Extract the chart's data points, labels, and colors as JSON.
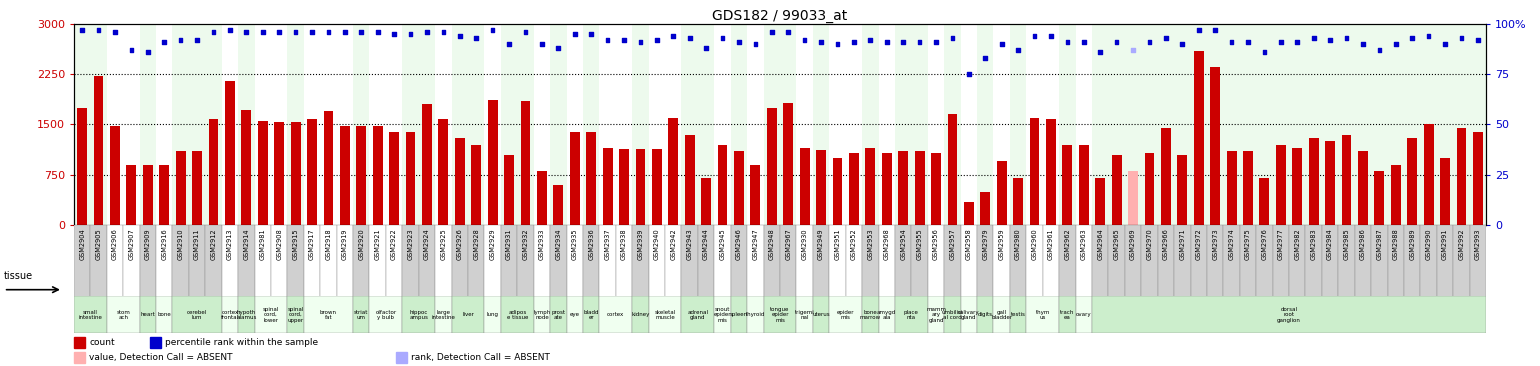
{
  "title": "GDS182 / 99033_at",
  "samples": [
    "GSM2904",
    "GSM2905",
    "GSM2906",
    "GSM2907",
    "GSM2909",
    "GSM2916",
    "GSM2910",
    "GSM2911",
    "GSM2912",
    "GSM2913",
    "GSM2914",
    "GSM2981",
    "GSM2908",
    "GSM2915",
    "GSM2917",
    "GSM2918",
    "GSM2919",
    "GSM2920",
    "GSM2921",
    "GSM2922",
    "GSM2923",
    "GSM2924",
    "GSM2925",
    "GSM2926",
    "GSM2928",
    "GSM2929",
    "GSM2931",
    "GSM2932",
    "GSM2933",
    "GSM2934",
    "GSM2935",
    "GSM2936",
    "GSM2937",
    "GSM2938",
    "GSM2939",
    "GSM2940",
    "GSM2942",
    "GSM2943",
    "GSM2944",
    "GSM2945",
    "GSM2946",
    "GSM2947",
    "GSM2948",
    "GSM2967",
    "GSM2930",
    "GSM2949",
    "GSM2951",
    "GSM2952",
    "GSM2953",
    "GSM2968",
    "GSM2954",
    "GSM2955",
    "GSM2956",
    "GSM2957",
    "GSM2958",
    "GSM2979",
    "GSM2959",
    "GSM2980",
    "GSM2960",
    "GSM2961",
    "GSM2962",
    "GSM2963",
    "GSM2964",
    "GSM2965",
    "GSM2969",
    "GSM2970",
    "GSM2966",
    "GSM2971",
    "GSM2972",
    "GSM2973",
    "GSM2974",
    "GSM2975",
    "GSM2976",
    "GSM2977",
    "GSM2982",
    "GSM2983",
    "GSM2984",
    "GSM2985",
    "GSM2986",
    "GSM2987",
    "GSM2988",
    "GSM2989",
    "GSM2990",
    "GSM2991",
    "GSM2992",
    "GSM2993"
  ],
  "counts": [
    1750,
    2220,
    1480,
    900,
    900,
    900,
    1100,
    1100,
    1580,
    2150,
    1720,
    1550,
    1530,
    1530,
    1580,
    1700,
    1480,
    1470,
    1480,
    1380,
    1380,
    1800,
    1580,
    1300,
    1200,
    1870,
    1050,
    1850,
    800,
    600,
    1380,
    1380,
    1150,
    1130,
    1130,
    1130,
    1600,
    1350,
    700,
    1200,
    1100,
    900,
    1750,
    1820,
    1150,
    1120,
    1000,
    1080,
    1150,
    1080,
    1100,
    1100,
    1080,
    1650,
    350,
    500,
    950,
    700,
    1600,
    1580,
    1200,
    1200,
    700,
    1050,
    800,
    1080,
    1450,
    1050,
    2600,
    2350,
    1100,
    1100,
    700,
    1200,
    1150,
    1300,
    1250,
    1350,
    1100,
    800,
    900,
    1300,
    1500,
    1000,
    1450,
    1380
  ],
  "percentile_ranks": [
    97,
    97,
    96,
    87,
    86,
    91,
    92,
    92,
    96,
    97,
    96,
    96,
    96,
    96,
    96,
    96,
    96,
    96,
    96,
    95,
    95,
    96,
    96,
    94,
    93,
    97,
    90,
    96,
    90,
    88,
    95,
    95,
    92,
    92,
    91,
    92,
    94,
    93,
    88,
    93,
    91,
    90,
    96,
    96,
    92,
    91,
    90,
    91,
    92,
    91,
    91,
    91,
    91,
    93,
    75,
    83,
    90,
    87,
    94,
    94,
    91,
    91,
    86,
    91,
    87,
    91,
    93,
    90,
    97,
    97,
    91,
    91,
    86,
    91,
    91,
    93,
    92,
    93,
    90,
    87,
    90,
    93,
    94,
    90,
    93,
    92
  ],
  "absent_indices": [
    64
  ],
  "tissue_boundaries": [
    [
      0,
      2,
      "small\nintestine"
    ],
    [
      2,
      4,
      "stom\nach"
    ],
    [
      4,
      5,
      "heart"
    ],
    [
      5,
      6,
      "bone"
    ],
    [
      6,
      9,
      "cerebel\nlum"
    ],
    [
      9,
      10,
      "cortex\nfrontal"
    ],
    [
      10,
      11,
      "hypoth\nalamus"
    ],
    [
      11,
      13,
      "spinal\ncord,\nlower"
    ],
    [
      13,
      14,
      "spinal\ncord,\nupper"
    ],
    [
      14,
      17,
      "brown\nfat"
    ],
    [
      17,
      18,
      "striat\num"
    ],
    [
      18,
      20,
      "olfactor\ny bulb"
    ],
    [
      20,
      22,
      "hippoc\nampus"
    ],
    [
      22,
      23,
      "large\nintestine"
    ],
    [
      23,
      25,
      "liver"
    ],
    [
      25,
      26,
      "lung"
    ],
    [
      26,
      28,
      "adipos\ne tissue"
    ],
    [
      28,
      29,
      "lymph\nnode"
    ],
    [
      29,
      30,
      "prost\nate"
    ],
    [
      30,
      31,
      "eye"
    ],
    [
      31,
      32,
      "bladd\ner"
    ],
    [
      32,
      34,
      "cortex"
    ],
    [
      34,
      35,
      "kidney"
    ],
    [
      35,
      37,
      "skeletal\nmuscle"
    ],
    [
      37,
      39,
      "adrenal\ngland"
    ],
    [
      39,
      40,
      "snout\nepider\nmis"
    ],
    [
      40,
      41,
      "spleen"
    ],
    [
      41,
      42,
      "thyroid"
    ],
    [
      42,
      44,
      "tongue\nepider\nmis"
    ],
    [
      44,
      45,
      "trigemi\nnal"
    ],
    [
      45,
      46,
      "uterus"
    ],
    [
      46,
      48,
      "epider\nmis"
    ],
    [
      48,
      49,
      "bone\nmarrow"
    ],
    [
      49,
      50,
      "amygd\nala"
    ],
    [
      50,
      52,
      "place\nnta"
    ],
    [
      52,
      53,
      "mamm\nary\ngland"
    ],
    [
      53,
      54,
      "umbilici\nal cord"
    ],
    [
      54,
      55,
      "salivary\ngland"
    ],
    [
      55,
      56,
      "digits"
    ],
    [
      56,
      57,
      "gall\nbladder"
    ],
    [
      57,
      58,
      "testis"
    ],
    [
      58,
      60,
      "thym\nus"
    ],
    [
      60,
      61,
      "trach\nea"
    ],
    [
      61,
      62,
      "ovary"
    ],
    [
      62,
      86,
      "dorsal\nroot\nganglion"
    ]
  ],
  "bar_color": "#cc0000",
  "absent_bar_color": "#ffb0b0",
  "dot_color": "#0000cc",
  "absent_dot_color": "#aaaaff",
  "sample_label_bg_odd": "#d0d0d0",
  "sample_label_bg_even": "#e8e8e8",
  "plot_bg_even": "#edfaed",
  "plot_bg_odd": "#ffffff",
  "tissue_bg_even": "#cceecc",
  "tissue_bg_odd": "#f0fff0",
  "ylim_left": [
    0,
    3000
  ],
  "ylim_right": [
    0,
    100
  ],
  "yticks_left": [
    0,
    750,
    1500,
    2250,
    3000
  ],
  "yticks_right": [
    0,
    25,
    50,
    75,
    100
  ]
}
